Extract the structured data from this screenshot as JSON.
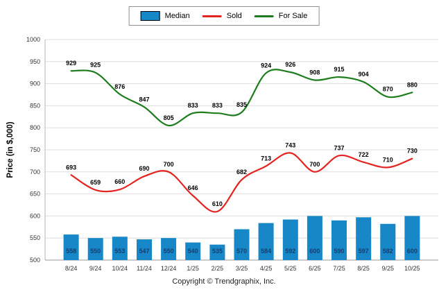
{
  "footer": "Copyright © Trendgraphix, Inc.",
  "chart_data": {
    "type": "bar+line",
    "title": "",
    "ylabel": "Price (in $,000)",
    "xlabel": "",
    "ylim": [
      500,
      1000
    ],
    "ytick_step": 50,
    "yticks": [
      500,
      550,
      600,
      650,
      700,
      750,
      800,
      850,
      900,
      950,
      1000
    ],
    "grid": true,
    "legend_position": "top",
    "categories": [
      "8/24",
      "9/24",
      "10/24",
      "11/24",
      "12/24",
      "1/25",
      "2/25",
      "3/25",
      "4/25",
      "5/25",
      "6/25",
      "7/25",
      "8/25",
      "9/25",
      "10/25"
    ],
    "series": [
      {
        "name": "Median",
        "type": "bar",
        "color": "#1787c8",
        "label_color": "#153e6f",
        "values": [
          558,
          550,
          553,
          547,
          550,
          540,
          535,
          570,
          584,
          592,
          600,
          590,
          597,
          582,
          600
        ]
      },
      {
        "name": "Sold",
        "type": "line",
        "color": "#e42320",
        "label_color": "#000000",
        "values": [
          693,
          659,
          660,
          690,
          700,
          646,
          610,
          682,
          713,
          743,
          700,
          737,
          722,
          710,
          730
        ]
      },
      {
        "name": "For Sale",
        "type": "line",
        "color": "#1d7d1d",
        "label_color": "#000000",
        "values": [
          929,
          925,
          876,
          847,
          805,
          833,
          833,
          835,
          924,
          926,
          908,
          915,
          904,
          870,
          880
        ]
      }
    ]
  }
}
